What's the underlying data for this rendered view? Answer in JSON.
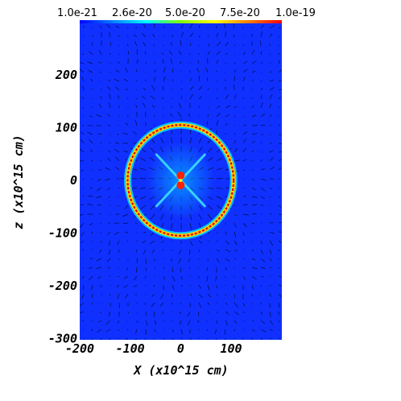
{
  "colorbar": {
    "labels": [
      "1.0e-21",
      "2.6e-20",
      "5.0e-20",
      "7.5e-20",
      "1.0e-19"
    ],
    "colors": [
      "#0000ff",
      "#0080ff",
      "#00ffff",
      "#80ff00",
      "#ffff00",
      "#ff8000",
      "#ff0000"
    ]
  },
  "colors": {
    "background": "#1030ff",
    "ring_outer": "#00c8ff",
    "ring_mid": "#ffd000",
    "ring_core": "#e00000",
    "arrows": "#000000"
  },
  "chart_data": {
    "type": "heatmap",
    "title": "",
    "xlabel": "X (x10^15 cm)",
    "ylabel": "z (x10^15 cm)",
    "xlim": [
      -200,
      200
    ],
    "ylim": [
      -300,
      300
    ],
    "xticks": [
      -200,
      -100,
      0,
      100
    ],
    "yticks": [
      -300,
      -200,
      -100,
      0,
      100,
      200
    ],
    "colorbar_range": [
      1e-21,
      1e-19
    ],
    "features": {
      "shell_center": [
        0,
        0
      ],
      "shell_radius": 105,
      "central_source": [
        0,
        0
      ]
    }
  }
}
